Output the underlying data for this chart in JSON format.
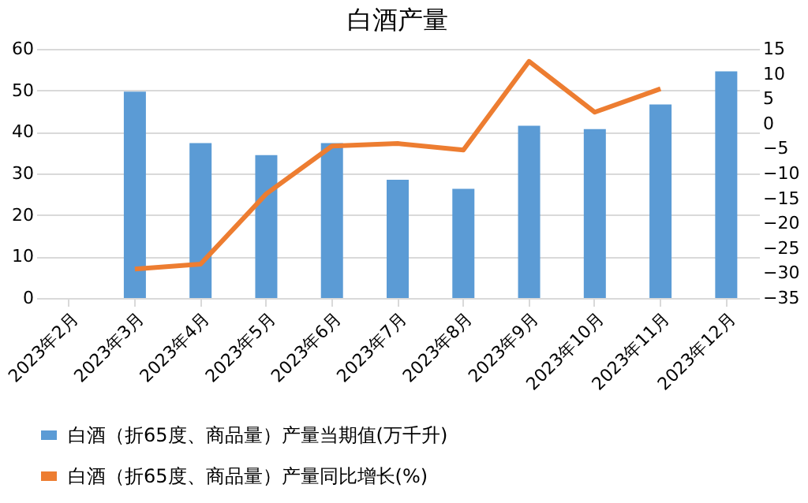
{
  "chart_data": {
    "type": "bar",
    "title": "白酒产量",
    "categories": [
      "2023年2月",
      "2023年3月",
      "2023年4月",
      "2023年5月",
      "2023年6月",
      "2023年7月",
      "2023年8月",
      "2023年9月",
      "2023年10月",
      "2023年11月",
      "2023年12月"
    ],
    "series": [
      {
        "name": "白酒（折65度、商品量）产量当期值(万千升)",
        "color": "#5b9bd5",
        "values": [
          null,
          49.7,
          37.3,
          34.4,
          37.3,
          28.5,
          26.3,
          41.5,
          40.7,
          46.6,
          54.6
        ]
      },
      {
        "name": "白酒（折65度、商品量）产量同比增长(%)",
        "type": "line",
        "axis": "y2",
        "color": "#ed7d31",
        "values": [
          null,
          -29.2,
          -28.2,
          -14.1,
          -4.5,
          -4.0,
          -5.3,
          12.5,
          2.3,
          7.0,
          null
        ]
      }
    ],
    "ylim": [
      0,
      60
    ],
    "yticks": [
      0,
      10,
      20,
      30,
      40,
      50,
      60
    ],
    "y2lim": [
      -35,
      15
    ],
    "y2ticks": [
      -35,
      -30,
      -25,
      -20,
      -15,
      -10,
      -5,
      0,
      5,
      10,
      15
    ],
    "grid": "y",
    "legend": "bottom",
    "marker": "none",
    "line_style": "solid"
  }
}
